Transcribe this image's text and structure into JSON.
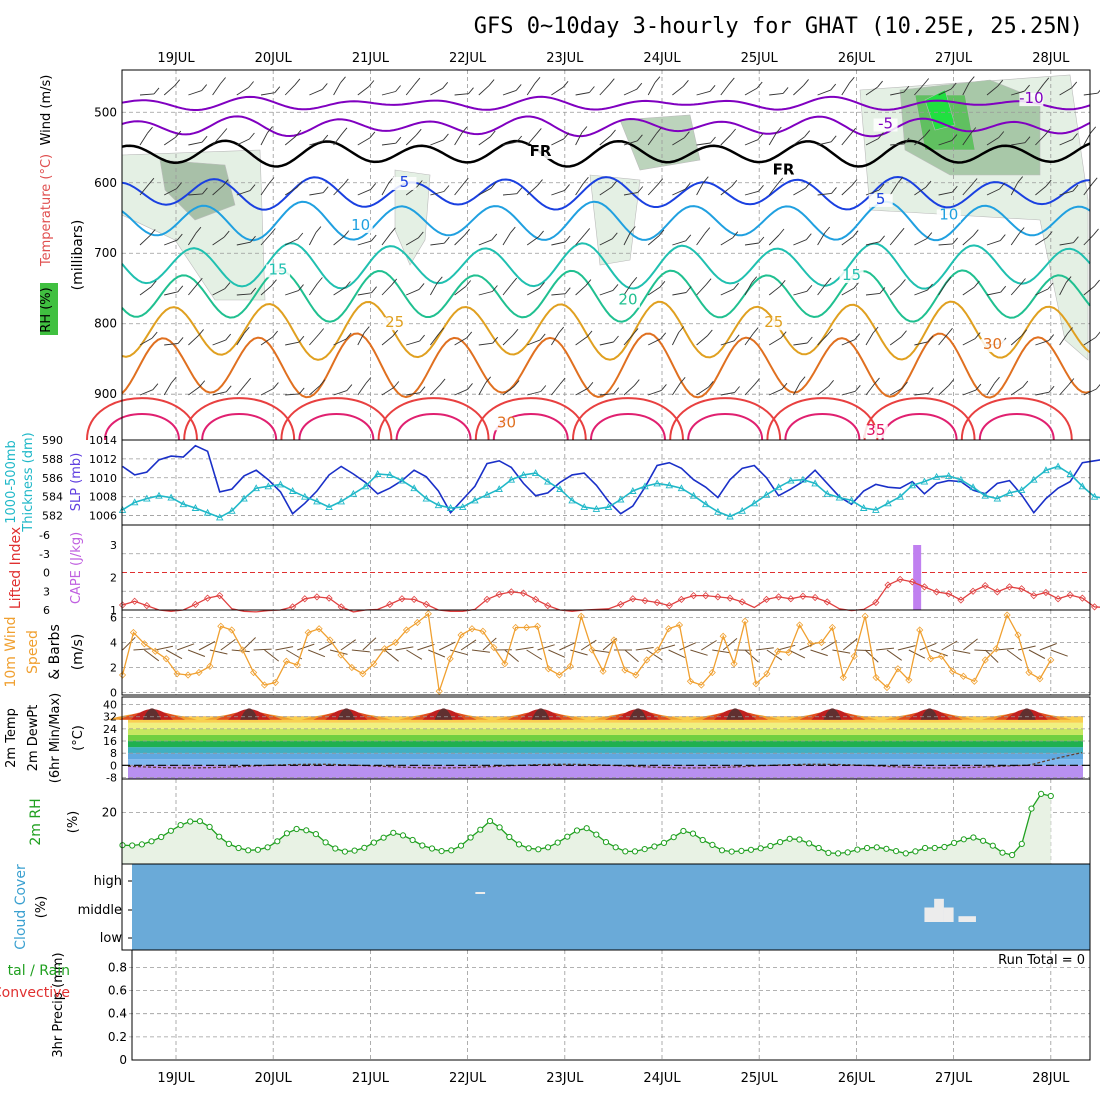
{
  "title": "GFS 0~10day 3-hourly for GHAT (10.25E, 25.25N)",
  "chart_data": {
    "type": "meteogram",
    "days": [
      "19JUL",
      "20JUL",
      "21JUL",
      "22JUL",
      "23JUL",
      "24JUL",
      "25JUL",
      "26JUL",
      "27JUL",
      "28JUL"
    ],
    "panels": [
      {
        "id": "upper",
        "ylabel_parts": [
          "RH (%)",
          "Temperature (°C)",
          "Wind (m/s)",
          "(millibars)"
        ],
        "ylabel_colors": [
          "#000000",
          "#e05050",
          "#000000",
          "#000000"
        ],
        "yticks": [
          500,
          600,
          700,
          800,
          900
        ],
        "ylim": [
          440,
          965
        ],
        "levels": [
          {
            "label": "-10",
            "color": "#8000c0",
            "base": 488
          },
          {
            "label": "-5",
            "color": "#8000c0",
            "base": 520
          },
          {
            "label": "FR",
            "color": "#000000",
            "base": 558
          },
          {
            "label": "5",
            "color": "#1a40e0",
            "base": 615
          },
          {
            "label": "10",
            "color": "#20a0e0",
            "base": 655
          },
          {
            "label": "15",
            "color": "#20c0b0",
            "base": 718
          },
          {
            "label": "20",
            "color": "#20c090",
            "base": 760
          },
          {
            "label": "25",
            "color": "#e0a020",
            "base": 810
          },
          {
            "label": "30",
            "color": "#e07020",
            "base": 860
          }
        ],
        "contour_labels": [
          {
            "text": "-10",
            "color": "#8000c0",
            "day": 8.8,
            "p": 487
          },
          {
            "text": "-5",
            "color": "#8000c0",
            "day": 7.3,
            "p": 523
          },
          {
            "text": "FR",
            "color": "#000000",
            "day": 3.75,
            "p": 562
          },
          {
            "text": "FR",
            "color": "#000000",
            "day": 6.25,
            "p": 588
          },
          {
            "text": "5",
            "color": "#1a40e0",
            "day": 2.35,
            "p": 606
          },
          {
            "text": "5",
            "color": "#1a40e0",
            "day": 7.25,
            "p": 630
          },
          {
            "text": "10",
            "color": "#20a0e0",
            "day": 1.9,
            "p": 667
          },
          {
            "text": "10",
            "color": "#20a0e0",
            "day": 7.95,
            "p": 652
          },
          {
            "text": "15",
            "color": "#20c0b0",
            "day": 1.05,
            "p": 730
          },
          {
            "text": "15",
            "color": "#20c0b0",
            "day": 6.95,
            "p": 738
          },
          {
            "text": "20",
            "color": "#20c090",
            "day": 4.65,
            "p": 773
          },
          {
            "text": "25",
            "color": "#e0a020",
            "day": 2.25,
            "p": 805
          },
          {
            "text": "25",
            "color": "#e0a020",
            "day": 6.15,
            "p": 805
          },
          {
            "text": "30",
            "color": "#e07020",
            "day": 8.4,
            "p": 836
          },
          {
            "text": "30",
            "color": "#e07020",
            "day": 3.4,
            "p": 947
          },
          {
            "text": "35",
            "color": "#e01060",
            "day": 7.2,
            "p": 958
          }
        ]
      },
      {
        "id": "slp_thickness",
        "ylabel_left": [
          "1000-500mb",
          "Thickness (dm)"
        ],
        "ylabel_right": "SLP (mb)",
        "left_ticks": [
          582,
          584,
          586,
          588,
          590
        ],
        "left_lim": [
          581,
          590
        ],
        "right_ticks": [
          1006,
          1008,
          1010,
          1012,
          1014
        ],
        "right_lim": [
          1005,
          1014
        ],
        "series": [
          {
            "name": "SLP (mb)",
            "color": "#1a30c8",
            "axis": "right",
            "values": [
              1011.2,
              1010.3,
              1010.6,
              1011.9,
              1012.3,
              1012.2,
              1013.4,
              1012.8,
              1008.5,
              1008.8,
              1010.2,
              1010.8,
              1009.8,
              1008.5,
              1006.2,
              1007.3,
              1008.6,
              1010.3,
              1011.2,
              1010.4,
              1009.5,
              1008.3,
              1008.9,
              1009.7,
              1010.8,
              1010.1,
              1008.6,
              1006.3,
              1007.7,
              1009.1,
              1011.5,
              1011.8,
              1011.1,
              1009.4,
              1008.1,
              1008.4,
              1009.5,
              1010.3,
              1010.5,
              1009.2,
              1007.5,
              1006.2,
              1007.0,
              1009.0,
              1011.3,
              1011.6,
              1011.0,
              1009.8,
              1009.0,
              1007.9,
              1009.8,
              1011.0,
              1011.3,
              1010.0,
              1008.1,
              1008.8,
              1009.6,
              1010.8,
              1009.4,
              1008.0,
              1007.2,
              1008.6,
              1009.3,
              1009.0,
              1008.9,
              1009.6,
              1008.3,
              1009.4,
              1009.7,
              1009.6,
              1008.7,
              1008.3,
              1009.4,
              1009.7,
              1008.2,
              1006.3,
              1007.8,
              1008.9,
              1009.6,
              1011.6,
              1011.8,
              1012.0
            ]
          },
          {
            "name": "1000-500mb Thickness (dm)",
            "color": "#20b8c8",
            "axis": "left",
            "values": [
              582.6,
              583.4,
              583.8,
              584.1,
              583.9,
              583.2,
              582.8,
              582.3,
              581.8,
              582.5,
              583.8,
              584.9,
              585.1,
              585.3,
              584.6,
              584.0,
              583.5,
              582.9,
              583.5,
              584.3,
              585.1,
              586.4,
              586.3,
              585.7,
              584.9,
              583.8,
              583.1,
              582.8,
              582.9,
              583.6,
              584.2,
              584.8,
              585.8,
              586.3,
              586.5,
              585.6,
              584.8,
              583.6,
              582.9,
              582.7,
              582.9,
              583.7,
              584.6,
              585.1,
              585.4,
              585.2,
              584.9,
              584.1,
              583.2,
              582.4,
              581.9,
              582.5,
              583.3,
              584.2,
              585.0,
              585.7,
              585.8,
              585.4,
              584.3,
              583.9,
              583.6,
              582.8,
              582.6,
              583.3,
              584.0,
              585.2,
              585.6,
              586.1,
              586.2,
              585.8,
              585.0,
              584.1,
              583.8,
              584.4,
              584.7,
              585.8,
              586.8,
              587.2,
              586.4,
              585.1,
              584.0,
              583.8
            ]
          }
        ]
      },
      {
        "id": "li_cape",
        "ylabel_left": "Lifted Index",
        "ylabel_right": "CAPE (J/kg)",
        "left_ticks": [
          "-6",
          "-3",
          "0",
          "3",
          "6"
        ],
        "right_ticks": [
          "1",
          "2",
          "3"
        ],
        "cape_bar": {
          "day": 7.625,
          "value": 3
        },
        "li_zero_line": true,
        "li_values": [
          5.2,
          4.6,
          5.3,
          6.0,
          6.2,
          6.0,
          5.1,
          4.1,
          3.7,
          5.8,
          6.2,
          6.3,
          6.1,
          6.0,
          5.5,
          4.2,
          3.9,
          4.1,
          5.5,
          6.3,
          6.0,
          5.9,
          5.1,
          4.2,
          4.3,
          5.1,
          6.0,
          6.2,
          6.2,
          5.9,
          4.3,
          3.5,
          3.1,
          3.3,
          4.3,
          5.3,
          6.0,
          6.2,
          6.0,
          5.9,
          5.8,
          5.1,
          4.2,
          4.5,
          4.8,
          5.3,
          4.3,
          3.7,
          3.7,
          3.9,
          4.1,
          4.7,
          5.6,
          4.3,
          3.9,
          4.2,
          3.8,
          4.0,
          4.7,
          5.8,
          6.1,
          5.9,
          4.8,
          2.0,
          1.1,
          1.5,
          2.3,
          3.1,
          3.4,
          4.4,
          3.0,
          2.1,
          3.1,
          2.3,
          2.6,
          3.7,
          3.2,
          4.2,
          3.6,
          4.1,
          5.5,
          5.6,
          4.0
        ]
      },
      {
        "id": "wind10m",
        "ylabel": [
          "10m Wind",
          "Speed",
          "& Barbs",
          "(m/s)"
        ],
        "ylabel_colors": [
          "#f0a030",
          "#f0a030",
          "#000000",
          "#000000"
        ],
        "yticks": [
          0,
          2,
          4,
          6
        ],
        "ylim": [
          -0.2,
          6.6
        ],
        "values": [
          1.4,
          4.8,
          3.9,
          3.3,
          2.7,
          1.5,
          1.4,
          1.6,
          2.1,
          5.3,
          5.0,
          3.4,
          1.6,
          0.6,
          0.8,
          2.5,
          2.2,
          4.8,
          5.1,
          4.2,
          3.0,
          2.0,
          1.5,
          2.3,
          3.5,
          4.0,
          5.0,
          5.6,
          6.3,
          0.1,
          2.7,
          4.6,
          5.1,
          4.9,
          3.6,
          2.3,
          5.2,
          5.2,
          5.3,
          1.9,
          1.4,
          2.1,
          6.1,
          3.4,
          1.7,
          4.2,
          1.8,
          1.4,
          2.6,
          3.4,
          5.1,
          5.4,
          0.9,
          0.6,
          1.6,
          4.5,
          2.3,
          5.7,
          0.7,
          1.5,
          3.3,
          3.2,
          5.4,
          3.9,
          4.0,
          5.2,
          1.2,
          2.9,
          6.1,
          1.2,
          0.4,
          1.9,
          1.0,
          5.0,
          2.7,
          2.9,
          1.7,
          1.3,
          0.9,
          2.6,
          3.5,
          6.2,
          4.6,
          1.6,
          1.1,
          2.6
        ]
      },
      {
        "id": "temp2m",
        "ylabel": [
          "2m Temp",
          "2m DewPt",
          "(6hr Min/Max)",
          "(°C)"
        ],
        "yticks": [
          -8,
          0,
          8,
          16,
          24,
          32,
          40
        ],
        "ylim": [
          -9,
          45
        ],
        "temp_min": 30,
        "temp_max": 41
      },
      {
        "id": "rh2m",
        "ylabel": [
          "2m RH",
          "(%)"
        ],
        "ylabel_color": "#20a020",
        "yticks": [
          20
        ],
        "ylim": [
          0,
          33
        ],
        "values": [
          7.3,
          7.2,
          7.6,
          8.8,
          10.5,
          12.9,
          15.1,
          16.5,
          16.6,
          14.4,
          10.6,
          7.8,
          6.2,
          5.3,
          5.5,
          6.5,
          8.8,
          11.9,
          13.6,
          13.1,
          11.6,
          8.4,
          6.0,
          4.8,
          5.2,
          6.3,
          8.3,
          10.2,
          12.1,
          11.1,
          9.3,
          7.2,
          6.0,
          5.0,
          5.3,
          7.1,
          10.3,
          13.3,
          16.7,
          14.2,
          10.5,
          7.6,
          6.1,
          5.7,
          6.5,
          8.3,
          10.6,
          13.0,
          13.9,
          11.4,
          8.5,
          6.5,
          4.9,
          4.9,
          5.8,
          6.8,
          8.2,
          10.4,
          12.8,
          11.8,
          9.3,
          7.4,
          5.3,
          4.8,
          5.1,
          5.5,
          6.1,
          7.0,
          8.5,
          9.8,
          9.5,
          8.0,
          6.2,
          4.3,
          4.1,
          4.5,
          5.6,
          6.2,
          6.5,
          5.9,
          5.0,
          4.1,
          4.9,
          6.2,
          6.2,
          6.6,
          8.2,
          9.6,
          10.3,
          9.0,
          7.1,
          4.4,
          3.5,
          7.8,
          21.5,
          27.2,
          26.4
        ]
      },
      {
        "id": "cloud",
        "ylabel": [
          "Cloud Cover",
          "(%)"
        ],
        "ylabel_color": "#3aa0d0",
        "levels": [
          "high",
          "middle",
          "low"
        ],
        "fill": "#6aaad8",
        "gaps": [
          {
            "day": 3.08,
            "level": "high",
            "width": 0.1
          },
          {
            "day": 7.7,
            "level": "middle",
            "width": 0.2,
            "height": 0.5
          },
          {
            "day": 7.8,
            "level": "middle",
            "width": 0.1,
            "height": 0.8
          },
          {
            "day": 7.9,
            "level": "middle",
            "width": 0.1,
            "height": 0.5
          },
          {
            "day": 8.05,
            "level": "middle",
            "width": 0.18,
            "height": 0.2
          }
        ]
      },
      {
        "id": "precip",
        "ylabel": [
          "3hr Precip (mm)"
        ],
        "ylabel_outer": [
          "tal / Rain",
          "Convective"
        ],
        "ylabel_outer_colors": [
          "#20a020",
          "#e03030"
        ],
        "run_total": "Run Total = 0",
        "yticks": [
          "0",
          "0.2",
          "0.4",
          "0.6",
          "0.8"
        ],
        "ylim": [
          0,
          0.95
        ]
      }
    ]
  }
}
